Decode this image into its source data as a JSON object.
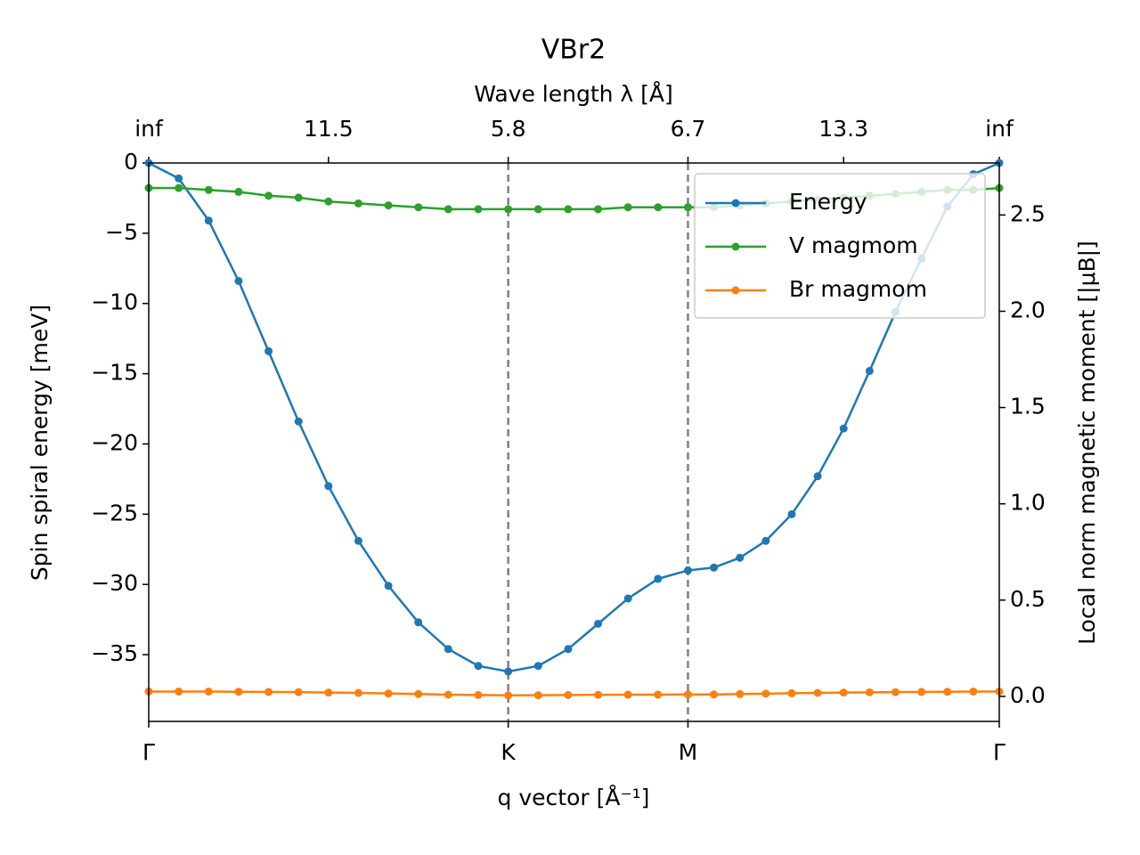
{
  "chart_data": {
    "type": "line",
    "title": "VBr2",
    "x_label": "q vector [Å⁻¹]",
    "x2_label": "Wave length λ [Å]",
    "y_label": "Spin spiral energy [meV]",
    "y2_label": "Local norm magnetic moment [|μB|]",
    "x": [
      0,
      0.0833,
      0.1667,
      0.25,
      0.3333,
      0.4167,
      0.5,
      0.5833,
      0.6667,
      0.75,
      0.8333,
      0.9167,
      1,
      1.0833,
      1.1667,
      1.25,
      1.3333,
      1.4167,
      1.5,
      1.5722,
      1.6443,
      1.7165,
      1.7887,
      1.8608,
      1.933,
      2.0052,
      2.0773,
      2.1495,
      2.2217,
      2.2938,
      2.366
    ],
    "series": [
      {
        "name": "Energy",
        "color": "#1f77b4",
        "axis": "y",
        "values": [
          0,
          -1.1,
          -4.1,
          -8.4,
          -13.4,
          -18.4,
          -23.0,
          -26.9,
          -30.1,
          -32.7,
          -34.6,
          -35.8,
          -36.2,
          -35.8,
          -34.6,
          -32.8,
          -31.0,
          -29.6,
          -29.0,
          -28.8,
          -28.1,
          -26.9,
          -25.0,
          -22.3,
          -18.9,
          -14.8,
          -10.6,
          -6.8,
          -3.1,
          -0.8,
          0
        ]
      },
      {
        "name": "V magmom",
        "color": "#2ca02c",
        "axis": "y2",
        "values": [
          2.64,
          2.64,
          2.63,
          2.62,
          2.6,
          2.59,
          2.57,
          2.56,
          2.55,
          2.54,
          2.53,
          2.53,
          2.53,
          2.53,
          2.53,
          2.53,
          2.54,
          2.54,
          2.54,
          2.54,
          2.55,
          2.56,
          2.57,
          2.58,
          2.59,
          2.6,
          2.61,
          2.62,
          2.63,
          2.63,
          2.64
        ]
      },
      {
        "name": "Br magmom",
        "color": "#ff7f0e",
        "axis": "y2",
        "values": [
          0.025,
          0.025,
          0.025,
          0.024,
          0.023,
          0.022,
          0.02,
          0.018,
          0.015,
          0.012,
          0.009,
          0.007,
          0.005,
          0.006,
          0.007,
          0.008,
          0.009,
          0.009,
          0.01,
          0.01,
          0.012,
          0.014,
          0.016,
          0.018,
          0.02,
          0.021,
          0.022,
          0.023,
          0.024,
          0.025,
          0.025
        ]
      }
    ],
    "xlim": [
      0,
      2.366
    ],
    "xticks": [
      {
        "value": 0,
        "label": "Γ"
      },
      {
        "value": 1,
        "label": "K"
      },
      {
        "value": 1.5,
        "label": "M"
      },
      {
        "value": 2.366,
        "label": "Γ"
      }
    ],
    "x2ticks": [
      {
        "value": 0,
        "label": "inf"
      },
      {
        "value": 0.5,
        "label": "11.5"
      },
      {
        "value": 1,
        "label": "5.8"
      },
      {
        "value": 1.5,
        "label": "6.7"
      },
      {
        "value": 1.933,
        "label": "13.3"
      },
      {
        "value": 2.366,
        "label": "inf"
      }
    ],
    "ylim": [
      -39.75,
      0
    ],
    "yticks": [
      {
        "value": 0,
        "label": "0"
      },
      {
        "value": -5,
        "label": "−5"
      },
      {
        "value": -10,
        "label": "−10"
      },
      {
        "value": -15,
        "label": "−15"
      },
      {
        "value": -20,
        "label": "−20"
      },
      {
        "value": -25,
        "label": "−25"
      },
      {
        "value": -30,
        "label": "−30"
      },
      {
        "value": -35,
        "label": "−35"
      }
    ],
    "y2lim": [
      -0.13,
      2.77
    ],
    "y2ticks": [
      {
        "value": 0,
        "label": "0.0"
      },
      0.5,
      {
        "value": 1,
        "label": "1.0"
      },
      1.5,
      {
        "value": 2,
        "label": "2.0"
      },
      2.5
    ],
    "vlines": [
      1,
      1.5
    ],
    "vline_color": "#808080",
    "legend": "upper right"
  }
}
